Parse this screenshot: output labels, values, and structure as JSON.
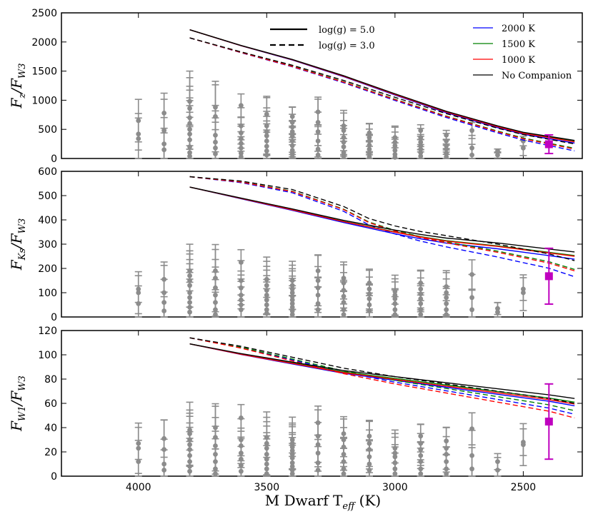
{
  "figure": {
    "x_label": "M Dwarf  T",
    "x_label_sub": "eff",
    "x_label_unit": " (K)"
  },
  "legend": {
    "styles": [
      {
        "label": "log(g) = 5.0",
        "dash": "solid"
      },
      {
        "label": "log(g) = 3.0",
        "dash": "dashed"
      }
    ],
    "companions": [
      {
        "label": "2000 K",
        "color": "#0000ff"
      },
      {
        "label": "1500 K",
        "color": "#008000"
      },
      {
        "label": "1000 K",
        "color": "#ff0000"
      },
      {
        "label": "No Companion",
        "color": "#000000"
      }
    ]
  },
  "colors": {
    "points": "#8c8c8c",
    "highlight": "#bf00bf"
  },
  "chart_data": [
    {
      "type": "scatter",
      "panel": "top",
      "ylabel": "Fz/FW3",
      "ylabel_main": "F",
      "ylabel_sub1": "z",
      "ylabel_sep": "/F",
      "ylabel_sub2": "W3",
      "xlim": [
        4300,
        2270
      ],
      "ylim": [
        0,
        2500
      ],
      "xticks": [
        4000,
        3500,
        3000,
        2500
      ],
      "xticklabels": [
        "4000",
        "3500",
        "3000",
        "2500"
      ],
      "yticks": [
        0,
        500,
        1000,
        1500,
        2000,
        2500
      ],
      "yticklabels": [
        "0",
        "500",
        "1000",
        "1500",
        "2000",
        "2500"
      ],
      "models": {
        "x": [
          3800,
          3600,
          3400,
          3200,
          3000,
          2800,
          2600,
          2500,
          2400,
          2300
        ],
        "nocomp_g5": [
          2210,
          1940,
          1700,
          1420,
          1110,
          810,
          560,
          450,
          380,
          310
        ],
        "nocomp_g3": [
          2070,
          1830,
          1600,
          1340,
          1050,
          770,
          520,
          410,
          330,
          250
        ],
        "g5_offsets": {
          "2000": -15,
          "1500": -5,
          "1000": -8
        },
        "g3_offsets": {
          "2000": -40,
          "1500": -25,
          "1000": -30
        }
      },
      "points": [
        {
          "x": 4000,
          "y": [
            420,
            340,
            650
          ],
          "err": 500
        },
        {
          "x": 3900,
          "y": [
            780,
            480,
            250,
            150
          ],
          "err": 620
        },
        {
          "x": 3800,
          "y": [
            980,
            860,
            700,
            600,
            500,
            420,
            320,
            200,
            100,
            40
          ],
          "err": 740
        },
        {
          "x": 3700,
          "y": [
            880,
            720,
            400,
            280,
            180,
            80
          ],
          "err": 700
        },
        {
          "x": 3600,
          "y": [
            910,
            560,
            440,
            340,
            260,
            180,
            90,
            30
          ],
          "err": 360
        },
        {
          "x": 3500,
          "y": [
            760,
            560,
            460,
            390,
            300,
            210,
            130,
            60
          ],
          "err": 560
        },
        {
          "x": 3400,
          "y": [
            720,
            620,
            540,
            460,
            380,
            300,
            220,
            140,
            80,
            30
          ],
          "err": 300
        },
        {
          "x": 3300,
          "y": [
            800,
            620,
            460,
            300,
            160,
            60
          ],
          "err": 460
        },
        {
          "x": 3200,
          "y": [
            560,
            480,
            360,
            280,
            200,
            100,
            40
          ],
          "err": 400
        },
        {
          "x": 3100,
          "y": [
            440,
            360,
            300,
            230,
            160,
            90,
            30
          ],
          "err": 280
        },
        {
          "x": 3000,
          "y": [
            360,
            280,
            220,
            140,
            70,
            20
          ],
          "err": 320
        },
        {
          "x": 2900,
          "y": [
            480,
            360,
            280,
            220,
            160,
            100,
            40
          ],
          "err": 180
        },
        {
          "x": 2800,
          "y": [
            400,
            300,
            220,
            160,
            90,
            30
          ],
          "err": 150
        },
        {
          "x": 2700,
          "y": [
            480,
            180,
            60
          ],
          "err": 250
        },
        {
          "x": 2600,
          "y": [
            130,
            60
          ],
          "err": 60
        },
        {
          "x": 2500,
          "y": [
            300,
            180
          ],
          "err": 150
        }
      ],
      "highlight": {
        "x": 2400,
        "y": 245,
        "err": 160
      }
    },
    {
      "type": "scatter",
      "panel": "middle",
      "ylabel": "FKs/FW3",
      "ylabel_main": "F",
      "ylabel_sub1": "Ks",
      "ylabel_sep": "/F",
      "ylabel_sub2": "W3",
      "xlim": [
        4300,
        2270
      ],
      "ylim": [
        0,
        600
      ],
      "xticks": [
        4000,
        3500,
        3000,
        2500
      ],
      "xticklabels": [
        "4000",
        "3500",
        "3000",
        "2500"
      ],
      "yticks": [
        0,
        100,
        200,
        300,
        400,
        500,
        600
      ],
      "yticklabels": [
        "0",
        "100",
        "200",
        "300",
        "400",
        "500",
        "600"
      ],
      "models": {
        "x": [
          3800,
          3600,
          3400,
          3200,
          3100,
          3000,
          2900,
          2800,
          2600,
          2400,
          2300
        ],
        "nocomp_g5": [
          535,
          490,
          445,
          398,
          378,
          358,
          340,
          325,
          305,
          280,
          268
        ],
        "nocomp_g3": [
          578,
          560,
          525,
          455,
          405,
          375,
          352,
          335,
          300,
          260,
          232
        ],
        "g5_offsets": {
          "2000": -10,
          "1500": -5,
          "1000": -6
        },
        "g3_offsets": {
          "2000": -22,
          "1500": -12,
          "1000": -14
        }
      },
      "points": [
        {
          "x": 4000,
          "y": [
            115,
            100,
            55
          ],
          "err": 100
        },
        {
          "x": 3900,
          "y": [
            155,
            100,
            60,
            25
          ],
          "err": 130
        },
        {
          "x": 3800,
          "y": [
            190,
            170,
            150,
            130,
            100,
            80,
            60,
            40,
            20
          ],
          "err": 150
        },
        {
          "x": 3700,
          "y": [
            190,
            160,
            120,
            90,
            60,
            30,
            10
          ],
          "err": 160
        },
        {
          "x": 3600,
          "y": [
            225,
            150,
            120,
            90,
            70,
            50,
            30
          ],
          "err": 95
        },
        {
          "x": 3500,
          "y": [
            155,
            130,
            110,
            90,
            70,
            50,
            30,
            15
          ],
          "err": 135
        },
        {
          "x": 3400,
          "y": [
            150,
            130,
            115,
            100,
            85,
            70,
            55,
            40,
            25,
            10
          ],
          "err": 115
        },
        {
          "x": 3300,
          "y": [
            190,
            150,
            120,
            90,
            55,
            30
          ],
          "err": 120
        },
        {
          "x": 3200,
          "y": [
            160,
            140,
            110,
            85,
            60,
            30,
            10
          ],
          "err": 100
        },
        {
          "x": 3100,
          "y": [
            140,
            115,
            95,
            75,
            50,
            25
          ],
          "err": 95
        },
        {
          "x": 3000,
          "y": [
            105,
            90,
            75,
            55,
            30,
            10
          ],
          "err": 95
        },
        {
          "x": 2900,
          "y": [
            140,
            115,
            95,
            75,
            55,
            30,
            10
          ],
          "err": 90
        },
        {
          "x": 2800,
          "y": [
            125,
            100,
            80,
            55,
            30,
            10
          ],
          "err": 105
        },
        {
          "x": 2700,
          "y": [
            175,
            80,
            30
          ],
          "err": 110
        },
        {
          "x": 2600,
          "y": [
            35,
            20
          ],
          "err": 45
        },
        {
          "x": 2500,
          "y": [
            115,
            100
          ],
          "err": 85
        }
      ],
      "highlight": {
        "x": 2400,
        "y": 168,
        "err": 115
      }
    },
    {
      "type": "scatter",
      "panel": "bottom",
      "ylabel": "FW1/FW3",
      "ylabel_main": "F",
      "ylabel_sub1": "W1",
      "ylabel_sep": "/F",
      "ylabel_sub2": "W3",
      "xlim": [
        4300,
        2270
      ],
      "ylim": [
        0,
        120
      ],
      "xticks": [
        4000,
        3500,
        3000,
        2500
      ],
      "xticklabels": [
        "4000",
        "3500",
        "3000",
        "2500"
      ],
      "yticks": [
        0,
        20,
        40,
        60,
        80,
        100,
        120
      ],
      "yticklabels": [
        "0",
        "20",
        "40",
        "60",
        "80",
        "100",
        "120"
      ],
      "models": {
        "x": [
          3800,
          3600,
          3400,
          3200,
          3000,
          2800,
          2600,
          2400,
          2300
        ],
        "nocomp_g5": [
          109,
          101,
          94,
          87,
          82,
          77,
          72,
          67,
          64
        ],
        "nocomp_g3": [
          114,
          107,
          98,
          89,
          82,
          76,
          70,
          64,
          60
        ],
        "g5_offsets": {
          "2000": -2,
          "1500": -1,
          "1000": -1.5
        },
        "g3_offsets": {
          "2000": -3,
          "1500": -2,
          "1000": -4
        }
      },
      "points": [
        {
          "x": 4000,
          "y": [
            27,
            23,
            12
          ],
          "err": 24
        },
        {
          "x": 3900,
          "y": [
            31,
            22,
            10,
            5
          ],
          "err": 28
        },
        {
          "x": 3800,
          "y": [
            38,
            35,
            30,
            26,
            22,
            17,
            12,
            8,
            4
          ],
          "err": 30
        },
        {
          "x": 3700,
          "y": [
            40,
            32,
            25,
            18,
            12,
            6,
            2
          ],
          "err": 32
        },
        {
          "x": 3600,
          "y": [
            48,
            30,
            25,
            19,
            14,
            9,
            4
          ],
          "err": 20
        },
        {
          "x": 3500,
          "y": [
            32,
            27,
            23,
            18,
            14,
            10,
            6,
            2
          ],
          "err": 30
        },
        {
          "x": 3400,
          "y": [
            30,
            27,
            24,
            21,
            18,
            15,
            11,
            8,
            5,
            2
          ],
          "err": 25
        },
        {
          "x": 3300,
          "y": [
            44,
            33,
            26,
            19,
            11,
            5
          ],
          "err": 25
        },
        {
          "x": 3200,
          "y": [
            35,
            30,
            24,
            18,
            12,
            6,
            2
          ],
          "err": 22
        },
        {
          "x": 3100,
          "y": [
            33,
            27,
            22,
            16,
            10,
            5
          ],
          "err": 22
        },
        {
          "x": 3000,
          "y": [
            23,
            19,
            16,
            11,
            6,
            2
          ],
          "err": 22
        },
        {
          "x": 2900,
          "y": [
            33,
            27,
            22,
            17,
            12,
            6,
            2
          ],
          "err": 18
        },
        {
          "x": 2800,
          "y": [
            29,
            23,
            18,
            12,
            6,
            2
          ],
          "err": 20
        },
        {
          "x": 2700,
          "y": [
            39,
            17,
            6
          ],
          "err": 24
        },
        {
          "x": 2600,
          "y": [
            12,
            5
          ],
          "err": 12
        },
        {
          "x": 2500,
          "y": [
            28,
            26
          ],
          "err": 20
        }
      ],
      "highlight": {
        "x": 2400,
        "y": 45,
        "err": 31
      }
    }
  ]
}
